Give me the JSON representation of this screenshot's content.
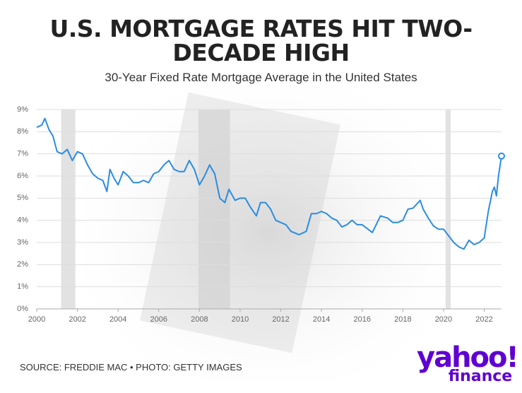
{
  "chart_data": {
    "type": "line",
    "title": "U.S. MORTGAGE RATES HIT TWO-DECADE HIGH",
    "subtitle": "30-Year Fixed Rate Mortgage Average in the United States",
    "source": "SOURCE: FREDDIE MAC • PHOTO: GETTY IMAGES",
    "logo": {
      "brand": "yahoo!",
      "sub": "finance"
    },
    "color": "#2b8de0",
    "x": [
      2000.0,
      2000.25,
      2000.4,
      2000.6,
      2000.8,
      2001.0,
      2001.25,
      2001.5,
      2001.75,
      2002.0,
      2002.25,
      2002.5,
      2002.75,
      2003.0,
      2003.25,
      2003.45,
      2003.6,
      2003.8,
      2004.0,
      2004.25,
      2004.5,
      2004.75,
      2005.0,
      2005.25,
      2005.5,
      2005.75,
      2006.0,
      2006.25,
      2006.5,
      2006.75,
      2007.0,
      2007.25,
      2007.5,
      2007.75,
      2008.0,
      2008.25,
      2008.5,
      2008.75,
      2009.0,
      2009.25,
      2009.45,
      2009.75,
      2010.0,
      2010.25,
      2010.5,
      2010.8,
      2011.0,
      2011.25,
      2011.5,
      2011.75,
      2012.0,
      2012.25,
      2012.5,
      2012.9,
      2013.25,
      2013.5,
      2013.75,
      2014.0,
      2014.25,
      2014.5,
      2014.75,
      2015.0,
      2015.25,
      2015.5,
      2015.75,
      2016.0,
      2016.5,
      2016.9,
      2017.25,
      2017.5,
      2017.75,
      2018.0,
      2018.25,
      2018.5,
      2018.85,
      2019.0,
      2019.25,
      2019.5,
      2019.75,
      2020.0,
      2020.25,
      2020.5,
      2020.75,
      2021.0,
      2021.25,
      2021.5,
      2021.75,
      2022.0,
      2022.2,
      2022.4,
      2022.5,
      2022.6,
      2022.7,
      2022.85
    ],
    "values": [
      8.2,
      8.3,
      8.6,
      8.1,
      7.8,
      7.1,
      7.0,
      7.2,
      6.7,
      7.1,
      7.0,
      6.5,
      6.1,
      5.9,
      5.8,
      5.3,
      6.3,
      5.9,
      5.6,
      6.2,
      6.0,
      5.7,
      5.7,
      5.8,
      5.7,
      6.1,
      6.2,
      6.5,
      6.7,
      6.3,
      6.2,
      6.2,
      6.7,
      6.3,
      5.6,
      6.0,
      6.5,
      6.1,
      5.0,
      4.8,
      5.4,
      4.9,
      5.0,
      5.0,
      4.6,
      4.2,
      4.8,
      4.8,
      4.5,
      4.0,
      3.9,
      3.8,
      3.5,
      3.35,
      3.5,
      4.3,
      4.3,
      4.4,
      4.3,
      4.1,
      4.0,
      3.7,
      3.8,
      4.0,
      3.8,
      3.8,
      3.45,
      4.2,
      4.1,
      3.9,
      3.9,
      4.0,
      4.5,
      4.55,
      4.9,
      4.5,
      4.1,
      3.75,
      3.6,
      3.6,
      3.3,
      3.0,
      2.8,
      2.7,
      3.1,
      2.9,
      3.0,
      3.2,
      4.4,
      5.3,
      5.5,
      5.1,
      6.0,
      6.9
    ],
    "shaded_ranges": [
      [
        2001.2,
        2001.9
      ],
      [
        2007.95,
        2009.5
      ],
      [
        2020.1,
        2020.35
      ]
    ],
    "xlim": [
      2000,
      2022.85
    ],
    "xticks": [
      2000,
      2002,
      2004,
      2006,
      2008,
      2010,
      2012,
      2014,
      2016,
      2018,
      2020,
      2022
    ],
    "ylim": [
      0,
      9
    ],
    "yticks": [
      {
        "value": 0,
        "label": "0%"
      },
      {
        "value": 1,
        "label": "1%"
      },
      {
        "value": 2,
        "label": "2%"
      },
      {
        "value": 3,
        "label": "3%"
      },
      {
        "value": 4,
        "label": "4%"
      },
      {
        "value": 5,
        "label": "5%"
      },
      {
        "value": 6,
        "label": "6%"
      },
      {
        "value": 7,
        "label": "7%"
      },
      {
        "value": 8,
        "label": "8%"
      },
      {
        "value": 9,
        "label": "9%"
      }
    ],
    "grid": true
  }
}
